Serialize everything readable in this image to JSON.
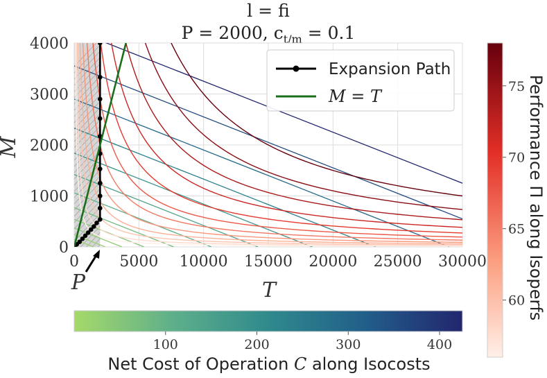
{
  "chart_data": {
    "type": "line",
    "title": "l = fi",
    "subtitle": "P = 2000, c_{t/m} = 0.1",
    "title_display": "l = fi",
    "subtitle_display": "P = 2000, c",
    "subtitle_sub": "t/m",
    "subtitle_tail": " = 0.1",
    "xlabel": "T",
    "ylabel": "M",
    "xlim": [
      0,
      30000
    ],
    "ylim": [
      0,
      4000
    ],
    "x_ticks": [
      0,
      5000,
      10000,
      15000,
      20000,
      25000,
      30000
    ],
    "y_ticks": [
      0,
      1000,
      2000,
      3000,
      4000
    ],
    "x_tick_labels": [
      "0",
      "5000",
      "10000",
      "15000",
      "20000",
      "25000",
      "30000"
    ],
    "y_tick_labels": [
      "0",
      "1000",
      "2000",
      "3000",
      "4000"
    ],
    "grid": true,
    "P": 2000,
    "P_label": "P",
    "shaded_region": {
      "x": [
        0,
        2000
      ],
      "description": "T < P"
    },
    "legend": {
      "position": "top-right",
      "entries": [
        {
          "label": "Expansion Path",
          "color": "#000000",
          "marker": "circle"
        },
        {
          "label": "M = T",
          "color": "#1a6e1a",
          "marker": "none"
        }
      ]
    },
    "series": [
      {
        "name": "Expansion Path",
        "color": "#000000",
        "points": [
          [
            0,
            0
          ],
          [
            200,
            50
          ],
          [
            420,
            100
          ],
          [
            640,
            160
          ],
          [
            860,
            220
          ],
          [
            1080,
            280
          ],
          [
            1300,
            340
          ],
          [
            1520,
            400
          ],
          [
            1740,
            470
          ],
          [
            2000,
            540
          ],
          [
            2000,
            760
          ],
          [
            2000,
            1000
          ],
          [
            2000,
            1250
          ],
          [
            2000,
            1530
          ],
          [
            2000,
            1830
          ],
          [
            2000,
            2170
          ],
          [
            2000,
            2520
          ],
          [
            2000,
            2900
          ],
          [
            2000,
            3330
          ],
          [
            2000,
            4000
          ]
        ]
      },
      {
        "name": "M = T",
        "color": "#1a6e1a",
        "points": [
          [
            0,
            0
          ],
          [
            4000,
            4000
          ]
        ]
      }
    ],
    "isocosts": {
      "colorbar_label": "Net Cost of Operation C along Isocosts",
      "colorbar_label_pre": "Net Cost of Operation ",
      "colorbar_label_var": "C",
      "colorbar_label_post": " along Isocosts",
      "colorbar_range": [
        0,
        425
      ],
      "colorbar_ticks": [
        100,
        200,
        300,
        400
      ],
      "colors": [
        "#a6d96a",
        "#1f2a6b"
      ],
      "lines": [
        {
          "cost": 425,
          "t_intercept": 42500,
          "m_intercept": 4250
        },
        {
          "cost": 355,
          "t_intercept": 35500,
          "m_intercept": 3550
        },
        {
          "cost": 290,
          "t_intercept": 29000,
          "m_intercept": 2900
        },
        {
          "cost": 233,
          "t_intercept": 23300,
          "m_intercept": 2330
        },
        {
          "cost": 184,
          "t_intercept": 18400,
          "m_intercept": 1840
        },
        {
          "cost": 142,
          "t_intercept": 14200,
          "m_intercept": 1420
        },
        {
          "cost": 106,
          "t_intercept": 10600,
          "m_intercept": 1060
        },
        {
          "cost": 77,
          "t_intercept": 7700,
          "m_intercept": 770
        },
        {
          "cost": 54,
          "t_intercept": 5400,
          "m_intercept": 540
        },
        {
          "cost": 37,
          "t_intercept": 3700,
          "m_intercept": 370
        },
        {
          "cost": 24,
          "t_intercept": 2400,
          "m_intercept": 240
        },
        {
          "cost": 15,
          "t_intercept": 1500,
          "m_intercept": 150
        }
      ]
    },
    "isoperfs": {
      "colorbar_label": "Performance Π along Isoperfs",
      "colorbar_range": [
        56,
        78
      ],
      "colorbar_ticks": [
        60,
        65,
        70,
        75
      ],
      "colors": [
        "#fff0e8",
        "#fca082",
        "#e32f27",
        "#67000d"
      ],
      "curves": [
        {
          "performance": 78,
          "level": 30000000
        },
        {
          "performance": 76,
          "level": 22000000
        },
        {
          "performance": 74,
          "level": 16000000
        },
        {
          "performance": 72,
          "level": 11500000
        },
        {
          "performance": 70,
          "level": 8200000
        },
        {
          "performance": 68,
          "level": 5800000
        },
        {
          "performance": 66,
          "level": 4000000
        },
        {
          "performance": 64,
          "level": 2700000
        },
        {
          "performance": 62,
          "level": 1800000
        },
        {
          "performance": 60,
          "level": 1150000
        },
        {
          "performance": 58,
          "level": 700000
        },
        {
          "performance": 56,
          "level": 400000
        }
      ]
    }
  }
}
